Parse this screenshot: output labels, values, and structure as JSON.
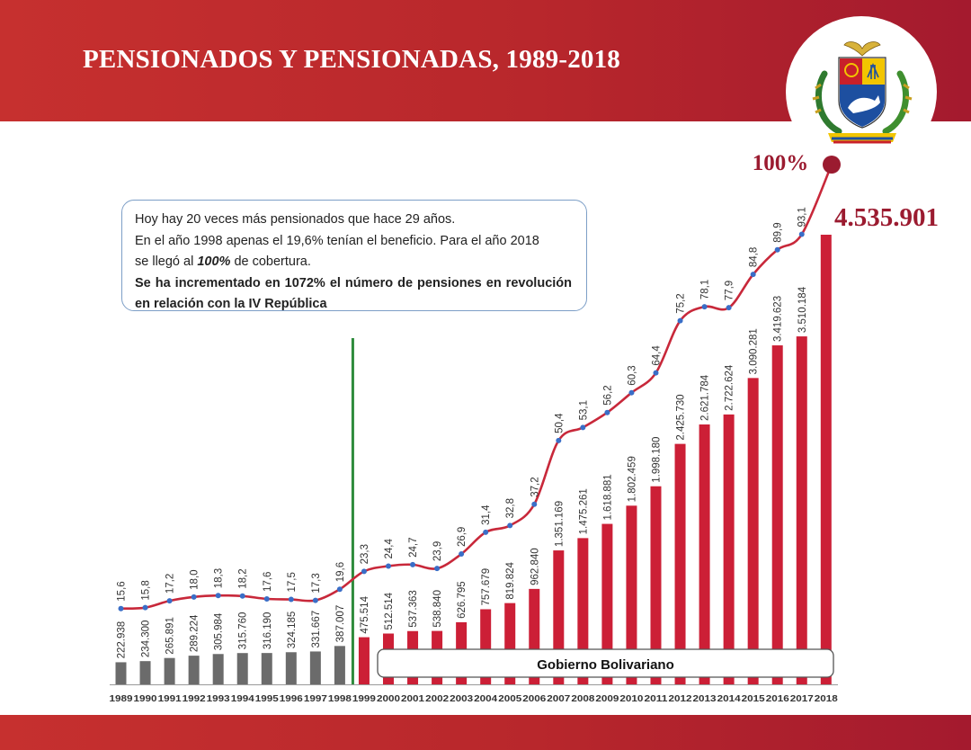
{
  "header": {
    "title": "PENSIONADOS Y PENSIONADAS, 1989-2018"
  },
  "emblem": {
    "icon": "venezuela-coat-of-arms-icon"
  },
  "note": {
    "line1": "Hoy hay 20 veces más pensionados que hace 29 años.",
    "line2": "En el año 1998 apenas el 19,6% tenían el beneficio. Para el año 2018",
    "line3_pre": "se llegó al ",
    "line3_emph": "100%",
    "line3_post": " de cobertura.",
    "line4": "Se ha incrementado en 1072% el número de pensiones en revolución en relación con la IV República"
  },
  "chart_data": {
    "type": "bar",
    "categories": [
      "1989",
      "1990",
      "1991",
      "1992",
      "1993",
      "1994",
      "1995",
      "1996",
      "1997",
      "1998",
      "1999",
      "2000",
      "2001",
      "2002",
      "2003",
      "2004",
      "2005",
      "2006",
      "2007",
      "2008",
      "2009",
      "2010",
      "2011",
      "2012",
      "2013",
      "2014",
      "2015",
      "2016",
      "2017",
      "2018"
    ],
    "series": [
      {
        "values": [
          222938,
          234300,
          265891,
          289224,
          305984,
          315760,
          316190,
          324185,
          331667,
          387007,
          475514,
          512514,
          537363,
          538840,
          626795,
          757679,
          819824,
          962840,
          1351169,
          1475261,
          1618881,
          1802459,
          1998180,
          2425730,
          2621784,
          2722624,
          3090281,
          3419623,
          3510184,
          4535901
        ],
        "labels": [
          "222.938",
          "234.300",
          "265.891",
          "289.224",
          "305.984",
          "315.760",
          "316.190",
          "324.185",
          "331.667",
          "387.007",
          "475.514",
          "512.514",
          "537.363",
          "538.840",
          "626.795",
          "757.679",
          "819.824",
          "962.840",
          "1.351.169",
          "1.475.261",
          "1.618.881",
          "1.802.459",
          "1.998.180",
          "2.425.730",
          "2.621.784",
          "2.722.624",
          "3.090.281",
          "3.419.623",
          "3.510.184",
          "4.535.901"
        ]
      },
      {
        "type": "line",
        "values": [
          15.6,
          15.8,
          17.2,
          18.0,
          18.3,
          18.2,
          17.6,
          17.5,
          17.3,
          19.6,
          23.3,
          24.4,
          24.7,
          23.9,
          26.9,
          31.4,
          32.8,
          37.2,
          50.4,
          53.1,
          56.2,
          60.3,
          64.4,
          75.2,
          78.1,
          77.9,
          84.8,
          89.9,
          93.1,
          100
        ],
        "labels": [
          "15,6",
          "15,8",
          "17,2",
          "18,0",
          "18,3",
          "18,2",
          "17,6",
          "17,5",
          "17,3",
          "19,6",
          "23,3",
          "24,4",
          "24,7",
          "23,9",
          "26,9",
          "31,4",
          "32,8",
          "37,2",
          "50,4",
          "53,1",
          "56,2",
          "60,3",
          "64,4",
          "75,2",
          "78,1",
          "77,9",
          "84,8",
          "89,9",
          "93,1",
          "100%"
        ]
      }
    ],
    "era_label": "Gobierno Bolivariano",
    "divider_after": "1998",
    "colors": {
      "pre_1999_bar": "#6b6b6b",
      "bolivarian_bar": "#cc1f36",
      "line": "#c8283a",
      "point": "#3a6ec7",
      "divider": "#2e8b3c"
    }
  }
}
